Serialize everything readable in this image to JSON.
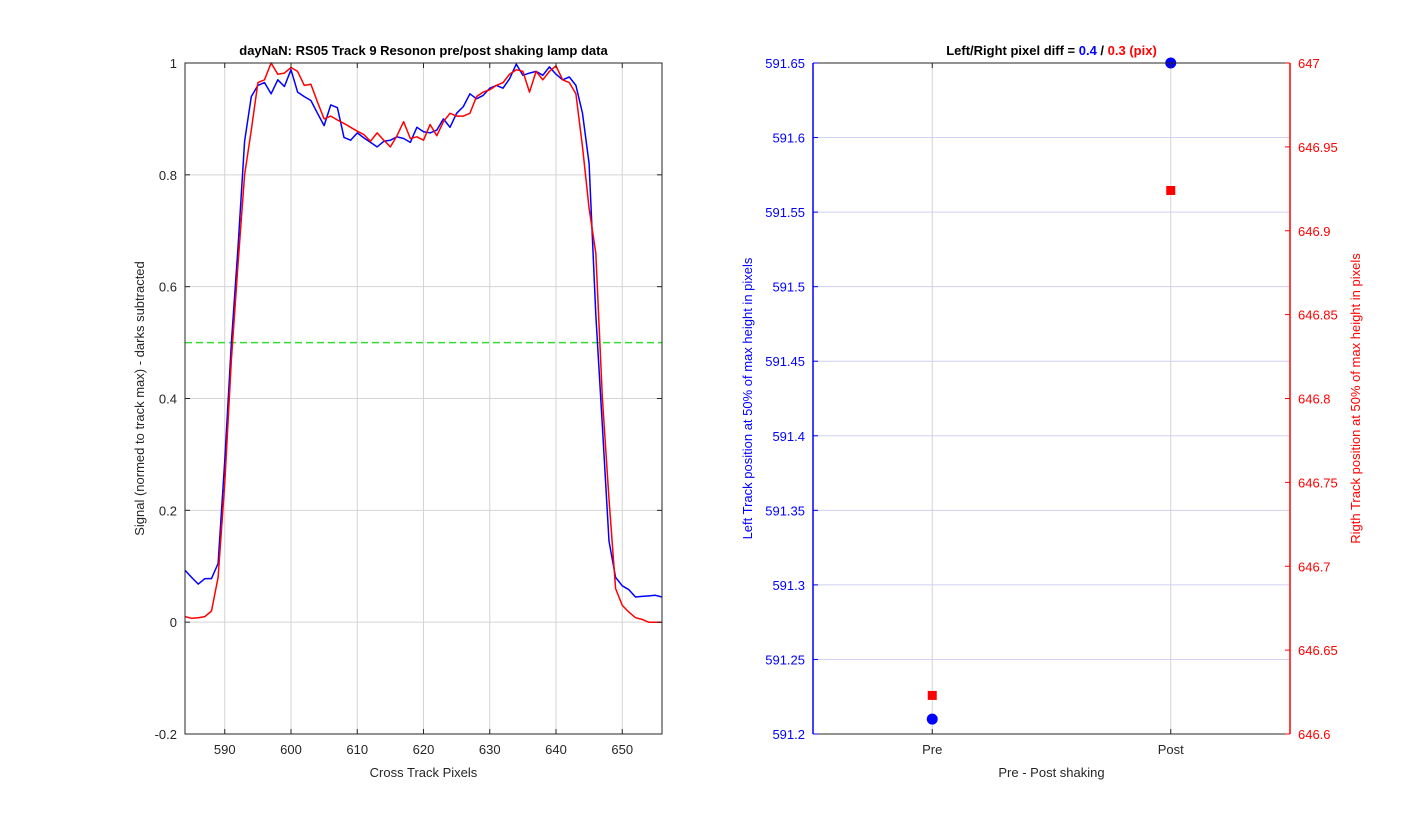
{
  "colors": {
    "blue": "#0000ff",
    "red": "#ff0000",
    "green": "#33dd33",
    "grid": "#d4d4d4",
    "axis": "#262626"
  },
  "chart_data": [
    {
      "type": "line",
      "title": "dayNaN: RS05  Track 9 Resonon pre/post shaking lamp data",
      "xlabel": "Cross Track Pixels",
      "ylabel": "Signal (normed to track max) - darks subtracted",
      "xlim": [
        584,
        656
      ],
      "ylim": [
        -0.2,
        1
      ],
      "xticks": [
        590,
        600,
        610,
        620,
        630,
        640,
        650
      ],
      "yticks": [
        -0.2,
        0,
        0.2,
        0.4,
        0.6,
        0.8,
        1
      ],
      "ytick_labels": [
        "-0.2",
        "0",
        "0.2",
        "0.4",
        "0.6",
        "0.8",
        "1"
      ],
      "grid": true,
      "reference_line": {
        "y": 0.5,
        "style": "dashed",
        "color": "#33dd33"
      },
      "series": [
        {
          "color": "#0000ff",
          "x": [
            584,
            585,
            586,
            587,
            588,
            589,
            590,
            591,
            592,
            593,
            594,
            595,
            596,
            597,
            598,
            599,
            600,
            601,
            602,
            603,
            604,
            605,
            606,
            607,
            608,
            609,
            610,
            611,
            612,
            613,
            614,
            615,
            616,
            617,
            618,
            619,
            620,
            621,
            622,
            623,
            624,
            625,
            626,
            627,
            628,
            629,
            630,
            631,
            632,
            633,
            634,
            635,
            636,
            637,
            638,
            639,
            640,
            641,
            642,
            643,
            644,
            645,
            646,
            647,
            648,
            649,
            650,
            651,
            652,
            653,
            654,
            655,
            656
          ],
          "y": [
            0.093,
            0.08,
            0.068,
            0.078,
            0.078,
            0.105,
            0.29,
            0.5,
            0.67,
            0.86,
            0.94,
            0.96,
            0.965,
            0.945,
            0.97,
            0.958,
            0.988,
            0.948,
            0.94,
            0.933,
            0.91,
            0.888,
            0.925,
            0.92,
            0.867,
            0.862,
            0.875,
            0.866,
            0.858,
            0.85,
            0.86,
            0.862,
            0.868,
            0.865,
            0.858,
            0.885,
            0.877,
            0.875,
            0.88,
            0.9,
            0.885,
            0.91,
            0.922,
            0.945,
            0.936,
            0.942,
            0.955,
            0.96,
            0.955,
            0.972,
            0.998,
            0.978,
            0.982,
            0.985,
            0.978,
            0.993,
            0.98,
            0.97,
            0.975,
            0.96,
            0.91,
            0.82,
            0.55,
            0.35,
            0.145,
            0.08,
            0.065,
            0.058,
            0.045,
            0.046,
            0.047,
            0.048,
            0.045
          ]
        },
        {
          "color": "#ff0000",
          "x": [
            584,
            585,
            586,
            587,
            588,
            589,
            590,
            591,
            592,
            593,
            594,
            595,
            596,
            597,
            598,
            599,
            600,
            601,
            602,
            603,
            604,
            605,
            606,
            607,
            608,
            609,
            610,
            611,
            612,
            613,
            614,
            615,
            616,
            617,
            618,
            619,
            620,
            621,
            622,
            623,
            624,
            625,
            626,
            627,
            628,
            629,
            630,
            631,
            632,
            633,
            634,
            635,
            636,
            637,
            638,
            639,
            640,
            641,
            642,
            643,
            644,
            645,
            646,
            647,
            648,
            649,
            650,
            651,
            652,
            653,
            654,
            655,
            656
          ],
          "y": [
            0.01,
            0.007,
            0.008,
            0.01,
            0.02,
            0.08,
            0.25,
            0.47,
            0.64,
            0.8,
            0.88,
            0.965,
            0.97,
            1.0,
            0.98,
            0.982,
            0.992,
            0.985,
            0.96,
            0.962,
            0.93,
            0.9,
            0.905,
            0.898,
            0.892,
            0.885,
            0.878,
            0.872,
            0.86,
            0.875,
            0.862,
            0.85,
            0.87,
            0.895,
            0.865,
            0.868,
            0.862,
            0.89,
            0.87,
            0.895,
            0.91,
            0.905,
            0.905,
            0.91,
            0.94,
            0.948,
            0.952,
            0.96,
            0.965,
            0.98,
            0.988,
            0.985,
            0.948,
            0.985,
            0.97,
            0.985,
            0.995,
            0.97,
            0.965,
            0.945,
            0.85,
            0.74,
            0.66,
            0.4,
            0.22,
            0.06,
            0.03,
            0.018,
            0.008,
            0.005,
            0.0,
            0.0,
            0.0
          ]
        }
      ]
    },
    {
      "type": "scatter",
      "title_parts": [
        {
          "text": "Left/Right pixel diff = ",
          "color": "#000000"
        },
        {
          "text": "0.4",
          "color": "#0000ff"
        },
        {
          "text": " / ",
          "color": "#000000"
        },
        {
          "text": "0.3 (pix)",
          "color": "#ff0000"
        }
      ],
      "xlabel": "Pre - Post shaking",
      "categories": [
        "Pre",
        "Post"
      ],
      "xlim": [
        0.5,
        2.5
      ],
      "grid": true,
      "y_left": {
        "label": "Left Track position at 50% of max height in pixels",
        "color": "#0000ff",
        "ylim": [
          591.2,
          591.65
        ],
        "ticks": [
          591.2,
          591.25,
          591.3,
          591.35,
          591.4,
          591.45,
          591.5,
          591.55,
          591.6,
          591.65
        ],
        "tick_labels": [
          "591.2",
          "591.25",
          "591.3",
          "591.35",
          "591.4",
          "591.45",
          "591.5",
          "591.55",
          "591.6",
          "591.65"
        ]
      },
      "y_right": {
        "label": "Rigth Track position at 50% of max height in pixels",
        "color": "#ff0000",
        "ylim": [
          646.6,
          647
        ],
        "ticks": [
          646.6,
          646.65,
          646.7,
          646.75,
          646.8,
          646.85,
          646.9,
          646.95,
          647
        ],
        "tick_labels": [
          "646.6",
          "646.65",
          "646.7",
          "646.75",
          "646.8",
          "646.85",
          "646.9",
          "646.95",
          "647"
        ]
      },
      "series": [
        {
          "axis": "left",
          "marker": "circle",
          "color": "#0000ff",
          "x": [
            1,
            2
          ],
          "y": [
            591.21,
            591.65
          ]
        },
        {
          "axis": "right",
          "marker": "square",
          "color": "#ff0000",
          "x": [
            1,
            2
          ],
          "y": [
            646.623,
            646.924
          ]
        }
      ]
    }
  ]
}
